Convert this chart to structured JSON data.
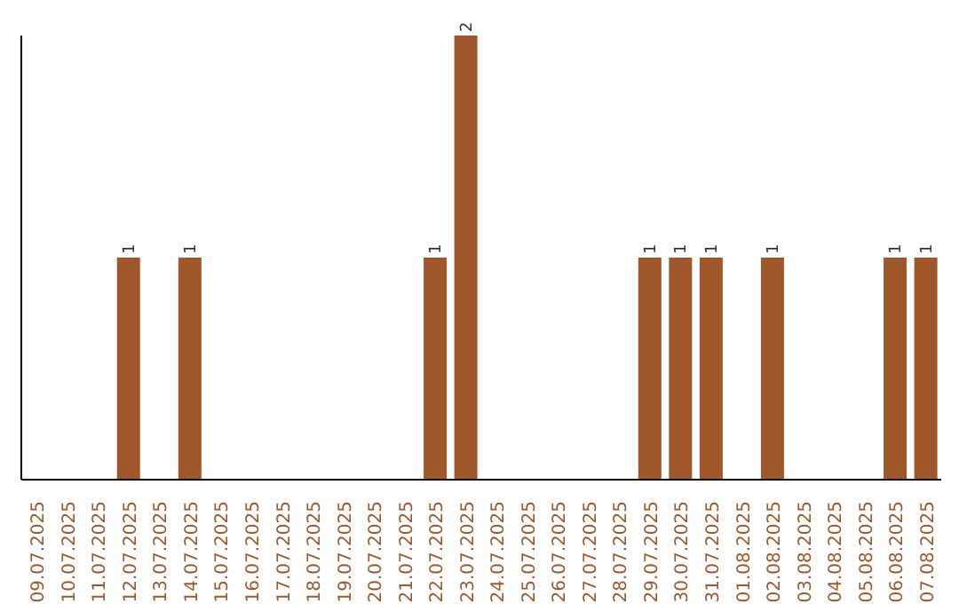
{
  "chart_data": {
    "type": "bar",
    "categories": [
      "09.07.2025",
      "10.07.2025",
      "11.07.2025",
      "12.07.2025",
      "13.07.2025",
      "14.07.2025",
      "15.07.2025",
      "16.07.2025",
      "17.07.2025",
      "18.07.2025",
      "19.07.2025",
      "20.07.2025",
      "21.07.2025",
      "22.07.2025",
      "23.07.2025",
      "24.07.2025",
      "25.07.2025",
      "26.07.2025",
      "27.07.2025",
      "28.07.2025",
      "29.07.2025",
      "30.07.2025",
      "31.07.2025",
      "01.08.2025",
      "02.08.2025",
      "03.08.2025",
      "04.08.2025",
      "05.08.2025",
      "06.08.2025",
      "07.08.2025"
    ],
    "values": [
      0,
      0,
      0,
      1,
      0,
      1,
      0,
      0,
      0,
      0,
      0,
      0,
      0,
      1,
      2,
      0,
      0,
      0,
      0,
      0,
      1,
      1,
      1,
      0,
      1,
      0,
      0,
      0,
      1,
      1
    ],
    "value_labels": [
      null,
      null,
      null,
      "1",
      null,
      "1",
      null,
      null,
      null,
      null,
      null,
      null,
      null,
      "1",
      "2",
      null,
      null,
      null,
      null,
      null,
      "1",
      "1",
      "1",
      null,
      "1",
      null,
      null,
      null,
      "1",
      "1"
    ],
    "color": "#a0582a",
    "grid": false,
    "legend": false,
    "tick_labels": "x"
  }
}
